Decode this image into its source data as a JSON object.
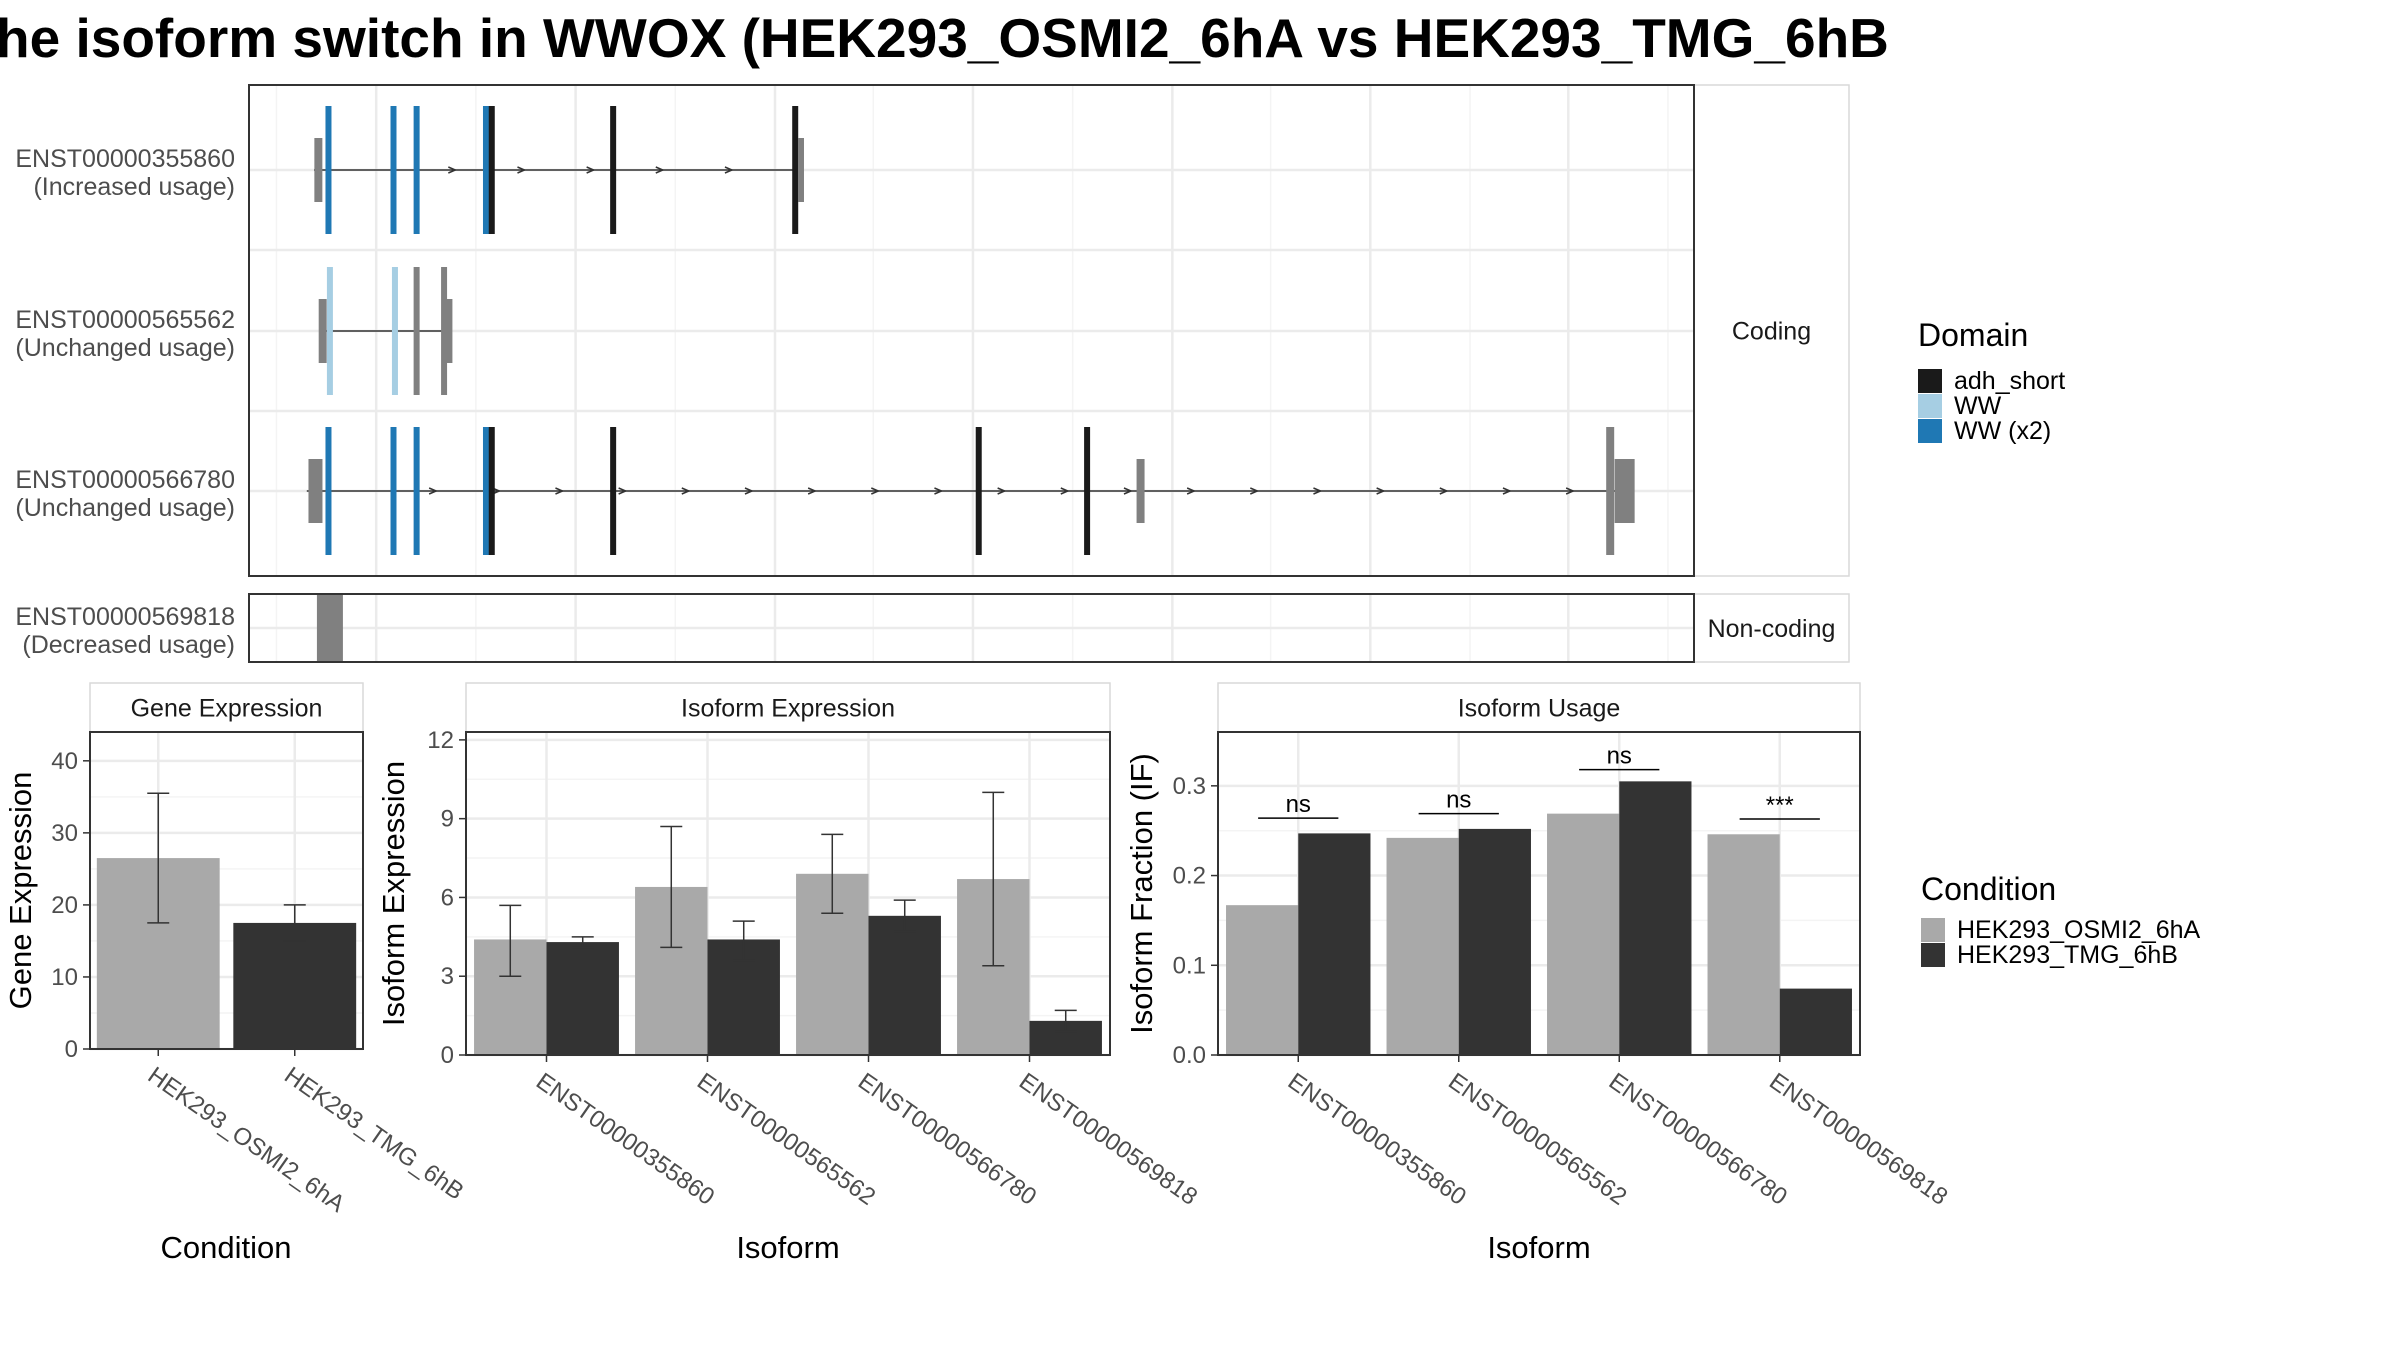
{
  "title": "he isoform switch in WWOX (HEK293_OSMI2_6hA vs HEK293_TMG_6hB",
  "colors": {
    "adh_short": "#1a1a1a",
    "WW": "#a6cee3",
    "WW (x2)": "#1f78b4",
    "utr": "#808080",
    "HEK293_OSMI2_6hA": "#a9a9a9",
    "HEK293_TMG_6hB": "#333333"
  },
  "chart_data": [
    {
      "type": "gene-structure",
      "panels": [
        {
          "label": "Coding",
          "transcripts": [
            {
              "id": "ENST00000355860",
              "usage": "(Increased usage)",
              "start": 0.045,
              "end": 0.38,
              "features": [
                {
                  "kind": "utr",
                  "pos": 0.048
                },
                {
                  "kind": "WW (x2)",
                  "pos": 0.055
                },
                {
                  "kind": "WW (x2)",
                  "pos": 0.1
                },
                {
                  "kind": "WW (x2)",
                  "pos": 0.116
                },
                {
                  "kind": "WW (x2)",
                  "pos": 0.164
                },
                {
                  "kind": "adh_short",
                  "pos": 0.168
                },
                {
                  "kind": "adh_short",
                  "pos": 0.252
                },
                {
                  "kind": "adh_short",
                  "pos": 0.378
                },
                {
                  "kind": "utr",
                  "pos": 0.382
                }
              ]
            },
            {
              "id": "ENST00000565562",
              "usage": "(Unchanged usage)",
              "start": 0.05,
              "end": 0.135,
              "features": [
                {
                  "kind": "utr",
                  "pos": 0.051
                },
                {
                  "kind": "WW",
                  "pos": 0.056
                },
                {
                  "kind": "WW",
                  "pos": 0.101
                },
                {
                  "kind": "utr",
                  "pos": 0.116
                },
                {
                  "kind": "utr",
                  "pos": 0.135
                },
                {
                  "kind": "utr",
                  "pos": 0.138
                }
              ]
            },
            {
              "id": "ENST00000566780",
              "usage": "(Unchanged usage)",
              "start": 0.04,
              "end": 0.958,
              "features": [
                {
                  "kind": "utr",
                  "pos": 0.046
                },
                {
                  "kind": "WW (x2)",
                  "pos": 0.055
                },
                {
                  "kind": "WW (x2)",
                  "pos": 0.1
                },
                {
                  "kind": "WW (x2)",
                  "pos": 0.116
                },
                {
                  "kind": "WW (x2)",
                  "pos": 0.164
                },
                {
                  "kind": "adh_short",
                  "pos": 0.168
                },
                {
                  "kind": "adh_short",
                  "pos": 0.252
                },
                {
                  "kind": "adh_short",
                  "pos": 0.505
                },
                {
                  "kind": "adh_short",
                  "pos": 0.58
                },
                {
                  "kind": "utr",
                  "pos": 0.617
                },
                {
                  "kind": "utr",
                  "pos": 0.942
                },
                {
                  "kind": "utr",
                  "pos": 0.952
                }
              ]
            }
          ]
        },
        {
          "label": "Non-coding",
          "transcripts": [
            {
              "id": "ENST00000569818",
              "usage": "(Decreased usage)",
              "start": 0.047,
              "end": 0.065,
              "features": [
                {
                  "kind": "utr-block",
                  "pos": 0.056
                }
              ]
            }
          ]
        }
      ],
      "legend": {
        "title": "Domain",
        "entries": [
          "adh_short",
          "WW",
          "WW (x2)"
        ]
      }
    },
    {
      "type": "bar",
      "title": "Gene Expression",
      "xlabel": "Condition",
      "ylabel": "Gene Expression",
      "ylim": [
        0,
        44
      ],
      "yticks": [
        0,
        10,
        20,
        30,
        40
      ],
      "categories": [
        "HEK293_OSMI2_6hA",
        "HEK293_TMG_6hB"
      ],
      "values": [
        26.5,
        17.5
      ],
      "errors": [
        [
          17.5,
          35.5
        ],
        [
          15.0,
          20.0
        ]
      ]
    },
    {
      "type": "bar",
      "title": "Isoform Expression",
      "xlabel": "Isoform",
      "ylabel": "Isoform Expression",
      "ylim": [
        0,
        12.3
      ],
      "yticks": [
        0,
        3,
        6,
        9,
        12
      ],
      "categories": [
        "ENST00000355860",
        "ENST00000565562",
        "ENST00000566780",
        "ENST00000569818"
      ],
      "series": [
        {
          "name": "HEK293_OSMI2_6hA",
          "values": [
            4.4,
            6.4,
            6.9,
            6.7
          ],
          "errors": [
            [
              3.0,
              5.7
            ],
            [
              4.1,
              8.7
            ],
            [
              5.4,
              8.4
            ],
            [
              3.4,
              10.0
            ]
          ]
        },
        {
          "name": "HEK293_TMG_6hB",
          "values": [
            4.3,
            4.4,
            5.3,
            1.3
          ],
          "errors": [
            [
              4.1,
              4.5
            ],
            [
              3.6,
              5.1
            ],
            [
              4.7,
              5.9
            ],
            [
              0.9,
              1.7
            ]
          ]
        }
      ]
    },
    {
      "type": "bar",
      "title": "Isoform Usage",
      "xlabel": "Isoform",
      "ylabel": "Isoform Fraction (IF)",
      "ylim": [
        0,
        0.36
      ],
      "yticks": [
        "0.0",
        "0.1",
        "0.2",
        "0.3"
      ],
      "categories": [
        "ENST00000355860",
        "ENST00000565562",
        "ENST00000566780",
        "ENST00000569818"
      ],
      "series": [
        {
          "name": "HEK293_OSMI2_6hA",
          "values": [
            0.167,
            0.242,
            0.269,
            0.246
          ]
        },
        {
          "name": "HEK293_TMG_6hB",
          "values": [
            0.247,
            0.252,
            0.305,
            0.074
          ]
        }
      ],
      "annotations": [
        {
          "category": "ENST00000355860",
          "text": "ns",
          "y": 0.264
        },
        {
          "category": "ENST00000565562",
          "text": "ns",
          "y": 0.269
        },
        {
          "category": "ENST00000566780",
          "text": "ns",
          "y": 0.318
        },
        {
          "category": "ENST00000569818",
          "text": "***",
          "y": 0.263
        }
      ]
    }
  ],
  "legend_condition": {
    "title": "Condition",
    "entries": [
      "HEK293_OSMI2_6hA",
      "HEK293_TMG_6hB"
    ]
  }
}
